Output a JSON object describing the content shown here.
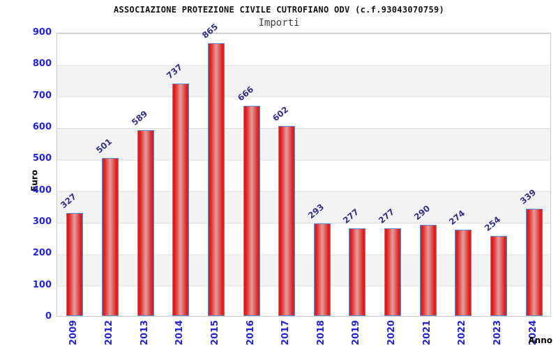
{
  "chart_data": {
    "type": "bar",
    "title": "ASSOCIAZIONE PROTEZIONE CIVILE CUTROFIANO ODV (c.f.93043070759)",
    "subtitle": "Importi",
    "xlabel": "Anno",
    "ylabel": "Euro",
    "categories": [
      "2009",
      "2012",
      "2013",
      "2014",
      "2015",
      "2016",
      "2017",
      "2018",
      "2019",
      "2020",
      "2021",
      "2022",
      "2023",
      "2024"
    ],
    "values": [
      327,
      501,
      589,
      737,
      865,
      666,
      602,
      293,
      277,
      277,
      290,
      274,
      254,
      339
    ],
    "ylim": [
      0,
      900
    ],
    "yticks": [
      0,
      100,
      200,
      300,
      400,
      500,
      600,
      700,
      800,
      900
    ],
    "grid": "horizontal-alternating-bands",
    "legend": "none",
    "colors": {
      "tick_label": "#2323d9",
      "value_label": "#32328c",
      "bar_border": "#5a8fd6",
      "bar_fill_edge": "#e01c1c",
      "bar_fill_center": "#eb9898",
      "band_gray": "#f3f3f3",
      "plot_border": "#cccccc",
      "title_color": "#111111",
      "subtitle_color": "#3d3d3d"
    }
  }
}
